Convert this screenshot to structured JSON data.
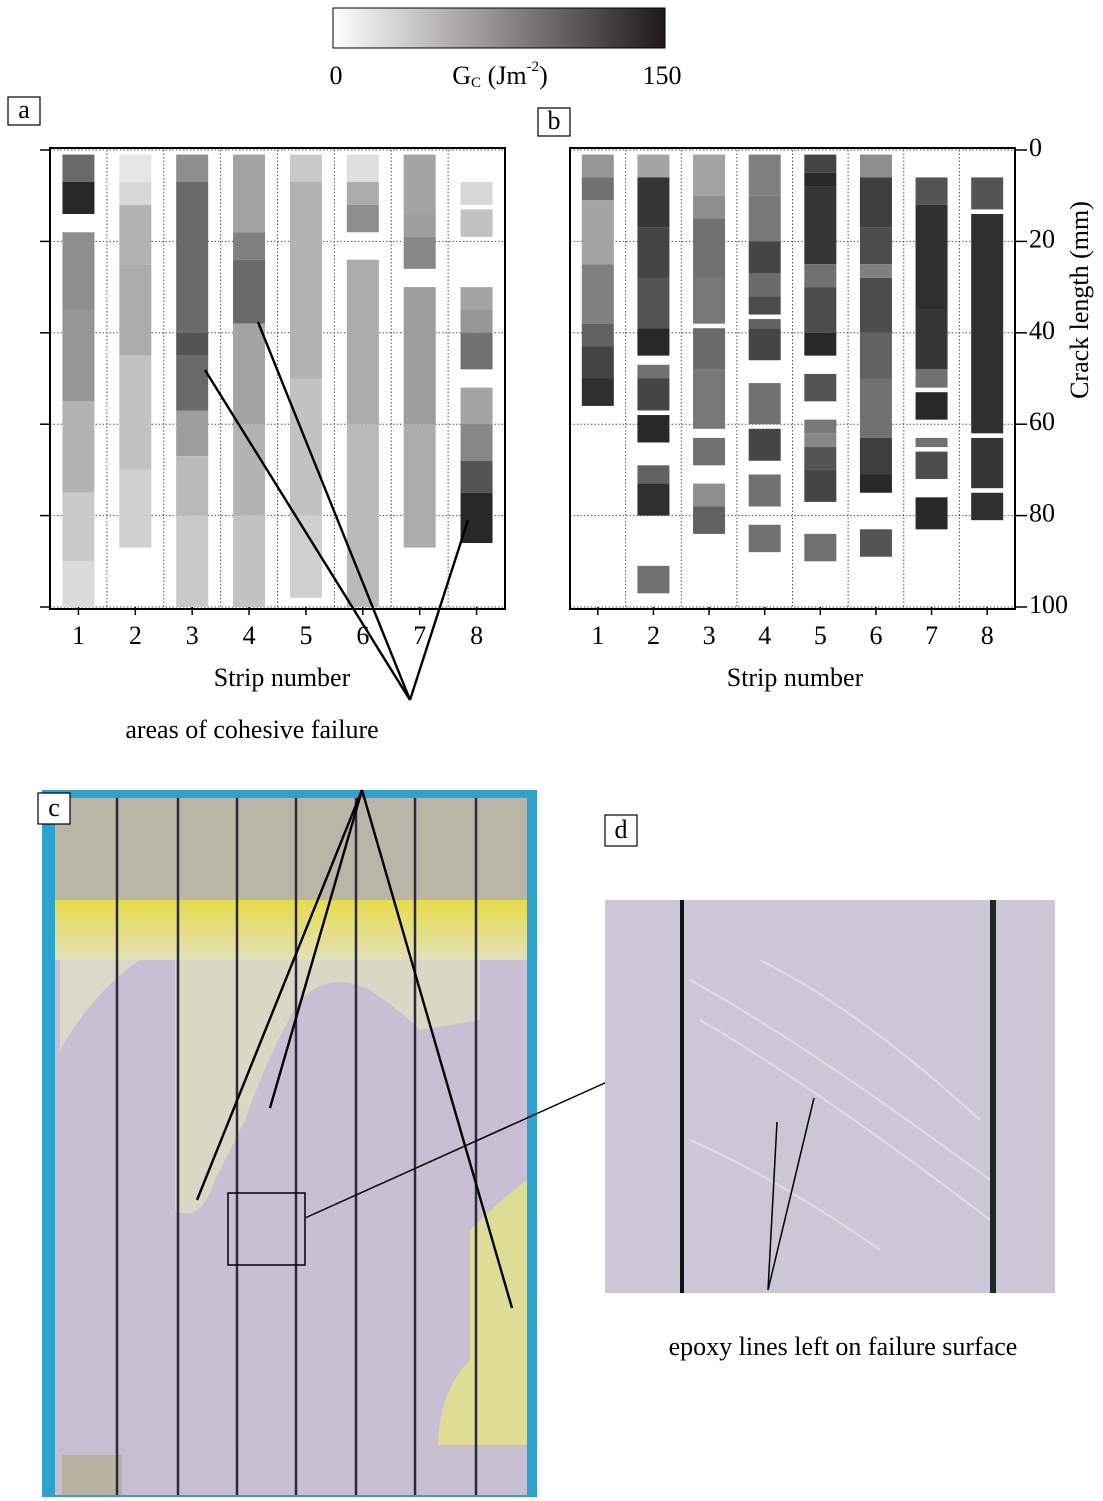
{
  "colorbar": {
    "min": 0,
    "max": 150,
    "label_main": "G",
    "label_sub": "C",
    "label_unit": " (Jm",
    "label_sup": "-2",
    "label_end": ")"
  },
  "crack_axis": {
    "label": "Crack length (mm)",
    "ylim": [
      0,
      100
    ],
    "yticks": [
      0,
      20,
      40,
      60,
      80,
      100
    ]
  },
  "panels": [
    {
      "label": "a",
      "xlabel": "Strip number",
      "xticks": [
        1,
        2,
        3,
        4,
        5,
        6,
        7,
        8
      ],
      "strips": [
        [
          [
            1,
            7,
            95
          ],
          [
            7,
            14,
            140
          ],
          [
            18,
            35,
            70
          ],
          [
            35,
            55,
            65
          ],
          [
            55,
            75,
            45
          ],
          [
            75,
            90,
            30
          ],
          [
            90,
            100,
            18
          ]
        ],
        [
          [
            1,
            7,
            10
          ],
          [
            7,
            12,
            20
          ],
          [
            12,
            25,
            45
          ],
          [
            25,
            45,
            50
          ],
          [
            45,
            70,
            35
          ],
          [
            70,
            87,
            25
          ]
        ],
        [
          [
            1,
            7,
            70
          ],
          [
            7,
            40,
            95
          ],
          [
            40,
            45,
            110
          ],
          [
            45,
            57,
            95
          ],
          [
            57,
            67,
            60
          ],
          [
            67,
            80,
            40
          ],
          [
            80,
            100,
            30
          ]
        ],
        [
          [
            1,
            18,
            55
          ],
          [
            18,
            24,
            80
          ],
          [
            24,
            38,
            95
          ],
          [
            38,
            60,
            55
          ],
          [
            60,
            80,
            45
          ],
          [
            80,
            100,
            35
          ]
        ],
        [
          [
            1,
            7,
            30
          ],
          [
            7,
            50,
            45
          ],
          [
            50,
            80,
            35
          ],
          [
            80,
            98,
            25
          ]
        ],
        [
          [
            1,
            7,
            15
          ],
          [
            7,
            12,
            50
          ],
          [
            12,
            18,
            70
          ],
          [
            24,
            60,
            50
          ],
          [
            60,
            100,
            40
          ]
        ],
        [
          [
            1,
            14,
            55
          ],
          [
            14,
            19,
            60
          ],
          [
            19,
            26,
            75
          ],
          [
            30,
            60,
            60
          ],
          [
            60,
            87,
            50
          ]
        ],
        [
          [
            7,
            12,
            20
          ],
          [
            13,
            19,
            35
          ],
          [
            30,
            35,
            55
          ],
          [
            35,
            40,
            65
          ],
          [
            40,
            48,
            90
          ],
          [
            52,
            60,
            55
          ],
          [
            60,
            68,
            75
          ],
          [
            68,
            75,
            110
          ],
          [
            75,
            86,
            140
          ]
        ]
      ]
    },
    {
      "label": "b",
      "xlabel": "Strip number",
      "xticks": [
        1,
        2,
        3,
        4,
        5,
        6,
        7,
        8
      ],
      "strips": [
        [
          [
            1,
            6,
            65
          ],
          [
            6,
            11,
            90
          ],
          [
            11,
            25,
            55
          ],
          [
            25,
            38,
            80
          ],
          [
            38,
            43,
            100
          ],
          [
            43,
            50,
            120
          ],
          [
            50,
            56,
            135
          ]
        ],
        [
          [
            1,
            6,
            55
          ],
          [
            6,
            17,
            130
          ],
          [
            17,
            28,
            120
          ],
          [
            28,
            39,
            110
          ],
          [
            39,
            45,
            140
          ],
          [
            47,
            50,
            90
          ],
          [
            50,
            57,
            120
          ],
          [
            58,
            64,
            140
          ],
          [
            69,
            73,
            100
          ],
          [
            73,
            80,
            135
          ],
          [
            91,
            97,
            90
          ]
        ],
        [
          [
            1,
            10,
            55
          ],
          [
            10,
            15,
            70
          ],
          [
            15,
            28,
            90
          ],
          [
            28,
            38,
            85
          ],
          [
            39,
            48,
            95
          ],
          [
            48,
            61,
            85
          ],
          [
            63,
            69,
            90
          ],
          [
            73,
            78,
            70
          ],
          [
            78,
            84,
            100
          ]
        ],
        [
          [
            1,
            10,
            80
          ],
          [
            10,
            20,
            85
          ],
          [
            20,
            27,
            120
          ],
          [
            27,
            32,
            95
          ],
          [
            32,
            36,
            115
          ],
          [
            37,
            39,
            100
          ],
          [
            39,
            46,
            120
          ],
          [
            51,
            60,
            90
          ],
          [
            61,
            68,
            120
          ],
          [
            71,
            78,
            90
          ],
          [
            82,
            88,
            90
          ]
        ],
        [
          [
            1,
            5,
            120
          ],
          [
            5,
            8,
            140
          ],
          [
            8,
            25,
            130
          ],
          [
            25,
            30,
            90
          ],
          [
            30,
            40,
            115
          ],
          [
            40,
            45,
            140
          ],
          [
            49,
            55,
            110
          ],
          [
            59,
            62,
            85
          ],
          [
            62,
            65,
            75
          ],
          [
            65,
            70,
            110
          ],
          [
            70,
            77,
            120
          ],
          [
            84,
            90,
            90
          ]
        ],
        [
          [
            1,
            6,
            70
          ],
          [
            6,
            17,
            125
          ],
          [
            17,
            25,
            115
          ],
          [
            25,
            28,
            80
          ],
          [
            28,
            40,
            115
          ],
          [
            40,
            50,
            100
          ],
          [
            50,
            63,
            90
          ],
          [
            63,
            71,
            125
          ],
          [
            71,
            75,
            140
          ],
          [
            83,
            89,
            110
          ]
        ],
        [
          [
            6,
            12,
            110
          ],
          [
            12,
            35,
            135
          ],
          [
            35,
            48,
            130
          ],
          [
            48,
            52,
            90
          ],
          [
            53,
            59,
            140
          ],
          [
            63,
            65,
            90
          ],
          [
            66,
            72,
            115
          ],
          [
            76,
            83,
            140
          ]
        ],
        [
          [
            6,
            13,
            110
          ],
          [
            14,
            62,
            135
          ],
          [
            63,
            74,
            130
          ],
          [
            75,
            81,
            135
          ]
        ]
      ]
    }
  ],
  "annotation": "areas of cohesive failure",
  "photo": {
    "label": "c"
  },
  "closeup": {
    "label": "d",
    "caption": "epoxy lines left on failure surface"
  }
}
